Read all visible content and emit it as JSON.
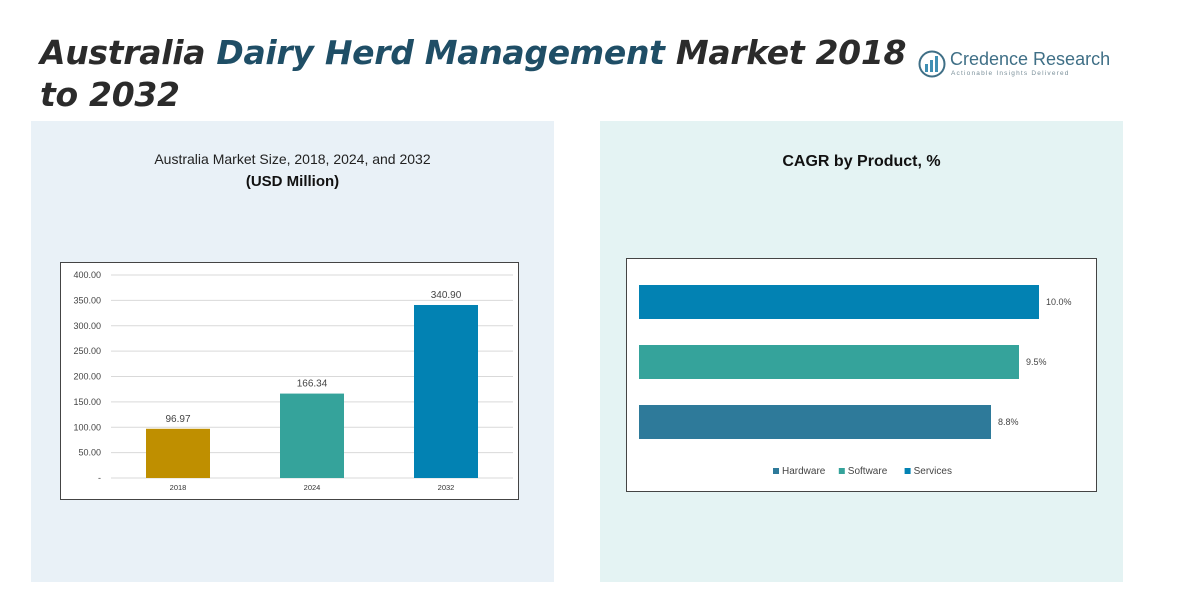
{
  "header": {
    "title_part1": "Australia ",
    "title_part2": "Dairy Herd Management",
    "title_part3": " Market 2018 to 2032"
  },
  "logo": {
    "name": "Credence Research",
    "tagline": "Actionable Insights Delivered"
  },
  "left_panel": {
    "title": "Australia Market Size, 2018, 2024, and 2032",
    "subtitle": "(USD Million)"
  },
  "right_panel": {
    "title": "CAGR by Product, %"
  },
  "chart_data": [
    {
      "type": "bar",
      "categories": [
        "2018",
        "2024",
        "2032"
      ],
      "values": [
        96.97,
        166.34,
        340.9
      ],
      "value_labels": [
        "96.97",
        "166.34",
        "340.90"
      ],
      "colors": [
        "#bf8f00",
        "#35a39b",
        "#0282b3"
      ],
      "ylim": [
        0,
        400
      ],
      "yticks": [
        "-",
        "50.00",
        "100.00",
        "150.00",
        "200.00",
        "250.00",
        "300.00",
        "350.00",
        "400.00"
      ],
      "title": "Australia Market Size, 2018, 2024, and 2032",
      "ylabel": "(USD Million)",
      "grid": true
    },
    {
      "type": "bar",
      "orientation": "horizontal",
      "series": [
        {
          "name": "Hardware",
          "value": 8.8,
          "label": "8.8%",
          "color": "#2e7a9a"
        },
        {
          "name": "Software",
          "value": 9.5,
          "label": "9.5%",
          "color": "#35a39b"
        },
        {
          "name": "Services",
          "value": 10.0,
          "label": "10.0%",
          "color": "#0282b3"
        }
      ],
      "xlim": [
        0,
        10.0
      ],
      "title": "CAGR by Product, %",
      "legend": "bottom"
    }
  ]
}
